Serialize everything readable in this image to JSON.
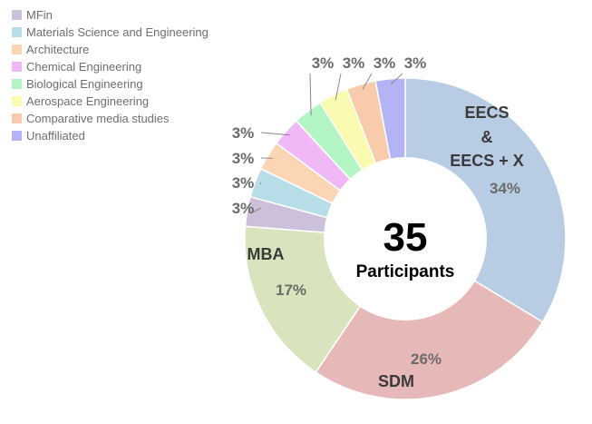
{
  "chart_data": {
    "type": "pie",
    "donut": true,
    "center": {
      "value": "35",
      "label": "Participants"
    },
    "slices": [
      {
        "name": "EECS & EECS + X",
        "label_lines": [
          "EECS",
          "&",
          "EECS + X"
        ],
        "value": 34,
        "pct_label": "34%",
        "color": "#b8cce4"
      },
      {
        "name": "SDM",
        "label_lines": [
          "SDM"
        ],
        "value": 26,
        "pct_label": "26%",
        "color": "#e6b9b8"
      },
      {
        "name": "MBA",
        "label_lines": [
          "MBA"
        ],
        "value": 17,
        "pct_label": "17%",
        "color": "#d7e4bd"
      },
      {
        "name": "MFin",
        "value": 3,
        "pct_label": "3%",
        "color": "#ccc0da"
      },
      {
        "name": "Materials Science and Engineering",
        "value": 3,
        "pct_label": "3%",
        "color": "#b7dee8"
      },
      {
        "name": "Architecture",
        "value": 3,
        "pct_label": "3%",
        "color": "#fcd5b5"
      },
      {
        "name": "Chemical Engineering",
        "value": 3,
        "pct_label": "3%",
        "color": "#f0b8f7"
      },
      {
        "name": "Biological Engineering",
        "value": 3,
        "pct_label": "3%",
        "color": "#b3f5c5"
      },
      {
        "name": "Aerospace Engineering",
        "value": 3,
        "pct_label": "3%",
        "color": "#fafab0"
      },
      {
        "name": "Comparative media studies",
        "value": 3,
        "pct_label": "3%",
        "color": "#f8cbad"
      },
      {
        "name": "Unaffiliated",
        "value": 3,
        "pct_label": "3%",
        "color": "#b4b4f5"
      }
    ],
    "legend": {
      "placement": "top-left",
      "entries": [
        {
          "label": "MFin",
          "color": "#ccc0da"
        },
        {
          "label": "Materials Science and Engineering",
          "color": "#b7dee8"
        },
        {
          "label": "Architecture",
          "color": "#fcd5b5"
        },
        {
          "label": "Chemical Engineering",
          "color": "#f0b8f7"
        },
        {
          "label": "Biological Engineering",
          "color": "#b3f5c5"
        },
        {
          "label": "Aerospace Engineering",
          "color": "#fafab0"
        },
        {
          "label": "Comparative media studies",
          "color": "#f8cbad"
        },
        {
          "label": "Unaffiliated",
          "color": "#b4b4f5"
        }
      ]
    }
  }
}
